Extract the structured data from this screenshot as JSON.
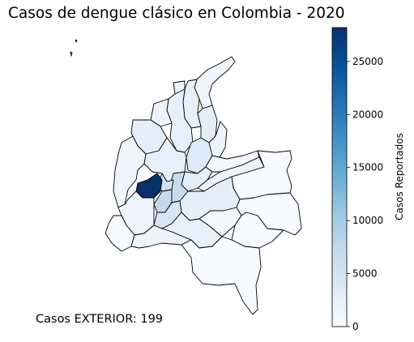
{
  "title": "Casos de dengue clásico en Colombia - 2020",
  "footnote": "Casos EXTERIOR: 199",
  "colorbar": {
    "label": "Casos Reportados",
    "ticks": [
      "0",
      "5000",
      "10000",
      "15000",
      "20000",
      "25000"
    ],
    "tick_values": [
      0,
      5000,
      10000,
      15000,
      20000,
      25000
    ],
    "min": 0,
    "max": 28200,
    "colormap": "Blues",
    "color_low": "#f7fbff",
    "color_high": "#08306b"
  }
}
